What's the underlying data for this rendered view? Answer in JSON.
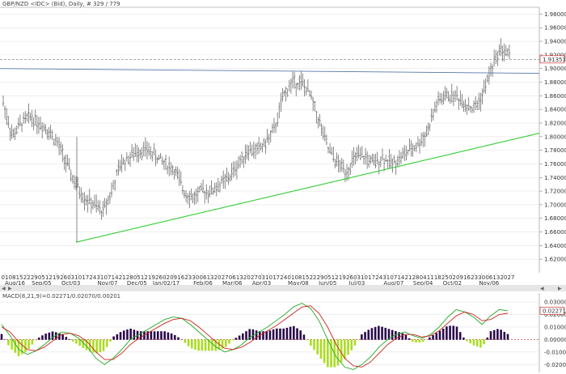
{
  "header": {
    "title": "GBP/NZD <IDC> (Bid), Daily, # 329 / 779"
  },
  "price_box": "1.91353",
  "macd": {
    "header": "MACD(8,21,9)=0.02271/0.02070/0.00201",
    "value_box": "0.02271",
    "yticks": [
      "0.03000",
      "0.02000",
      "0.01000",
      "0.00000",
      "-0.01000",
      "-0.02000"
    ]
  },
  "colors": {
    "candle": "#555555",
    "trend_up": "#33cc33",
    "resistance": "#5577aa",
    "dashed": "#777777",
    "macd_line": "#22aa22",
    "signal_line": "#cc2222",
    "hist_pos": "#2a0a4a",
    "hist_neg": "#aadd22"
  },
  "chart_data": {
    "type": "line",
    "title": "GBP/NZD <IDC> (Bid), Daily",
    "ylim": [
      1.6,
      1.99
    ],
    "yticks": [
      1.98,
      1.96,
      1.94,
      1.92,
      1.9,
      1.88,
      1.86,
      1.84,
      1.82,
      1.8,
      1.78,
      1.76,
      1.74,
      1.72,
      1.7,
      1.68,
      1.66,
      1.64,
      1.62
    ],
    "ytick_labels": [
      "1.98000",
      "1.96000",
      "1.94000",
      "1.92000",
      "1.90000",
      "1.88000",
      "1.86000",
      "1.84000",
      "1.82000",
      "1.80000",
      "1.78000",
      "1.76000",
      "1.74000",
      "1.72000",
      "1.70000",
      "1.68000",
      "1.66000",
      "1.64000",
      "1.62000"
    ],
    "day_labels": [
      "01",
      "08",
      "15",
      "22",
      "29",
      "05",
      "12",
      "19",
      "26",
      "03",
      "10",
      "17",
      "24",
      "31",
      "07",
      "14",
      "21",
      "28",
      "05",
      "12",
      "19",
      "26",
      "02",
      "09",
      "16",
      "23",
      "30",
      "06",
      "13",
      "20",
      "27",
      "06",
      "13",
      "20",
      "27",
      "03",
      "10",
      "17",
      "24",
      "01",
      "08",
      "15",
      "22",
      "29",
      "05",
      "12",
      "19",
      "26",
      "03",
      "10",
      "17",
      "24",
      "31",
      "07",
      "14",
      "21",
      "28",
      "04",
      "11",
      "18",
      "25",
      "02",
      "09",
      "16",
      "23",
      "30",
      "06",
      "13",
      "20",
      "27"
    ],
    "month_labels": [
      "Aug/16",
      "Sep/05",
      "Oct/03",
      "Nov/07",
      "Dec/05",
      "Jan/02/17",
      "Feb/06",
      "Mar/06",
      "Apr/03",
      "May/08",
      "Jun/05",
      "Jul/03",
      "Aug/07",
      "Sep/04",
      "Oct/02",
      "Nov/06"
    ],
    "month_label_index": [
      0,
      5,
      9,
      14,
      18,
      22,
      27,
      31,
      35,
      40,
      44,
      48,
      53,
      57,
      61,
      66
    ],
    "current_price": 1.91353,
    "price_path_weekly": [
      1.85,
      1.8,
      1.82,
      1.83,
      1.82,
      1.81,
      1.79,
      1.76,
      1.73,
      1.71,
      1.7,
      1.69,
      1.72,
      1.76,
      1.77,
      1.78,
      1.78,
      1.77,
      1.76,
      1.75,
      1.72,
      1.71,
      1.72,
      1.72,
      1.73,
      1.74,
      1.76,
      1.78,
      1.78,
      1.79,
      1.81,
      1.86,
      1.88,
      1.88,
      1.86,
      1.82,
      1.78,
      1.76,
      1.75,
      1.77,
      1.77,
      1.76,
      1.77,
      1.76,
      1.77,
      1.78,
      1.79,
      1.81,
      1.85,
      1.86,
      1.86,
      1.85,
      1.84,
      1.86,
      1.9,
      1.93,
      1.92
    ],
    "resistance_line": {
      "from": 1.9,
      "to": 1.893
    },
    "support_line": {
      "from": 1.645,
      "to": 1.805
    },
    "macd_series": [
      {
        "name": "MACD",
        "values": [
          0.012,
          0.003,
          -0.008,
          -0.012,
          -0.009,
          -0.004,
          0.002,
          0.006,
          0.005,
          0.001,
          -0.006,
          -0.015,
          -0.02,
          -0.015,
          -0.008,
          0.0,
          0.004,
          0.008,
          0.012,
          0.016,
          0.018,
          0.017,
          0.012,
          0.006,
          0.0,
          -0.006,
          -0.01,
          -0.008,
          -0.004,
          0.002,
          0.006,
          0.01,
          0.015,
          0.02,
          0.026,
          0.029,
          0.025,
          0.015,
          0.0,
          -0.014,
          -0.022,
          -0.024,
          -0.02,
          -0.014,
          -0.006,
          0.0,
          0.004,
          0.006,
          0.003,
          0.001,
          0.004,
          0.01,
          0.018,
          0.024,
          0.022,
          0.018,
          0.012,
          0.019,
          0.024,
          0.023
        ]
      },
      {
        "name": "Signal",
        "values": [
          0.01,
          0.006,
          -0.002,
          -0.008,
          -0.009,
          -0.006,
          -0.001,
          0.004,
          0.005,
          0.003,
          -0.002,
          -0.01,
          -0.016,
          -0.016,
          -0.011,
          -0.004,
          0.001,
          0.005,
          0.009,
          0.013,
          0.016,
          0.017,
          0.015,
          0.01,
          0.004,
          -0.002,
          -0.007,
          -0.008,
          -0.006,
          -0.002,
          0.003,
          0.007,
          0.011,
          0.016,
          0.021,
          0.026,
          0.027,
          0.021,
          0.01,
          -0.004,
          -0.015,
          -0.021,
          -0.022,
          -0.018,
          -0.011,
          -0.004,
          0.001,
          0.004,
          0.004,
          0.002,
          0.003,
          0.007,
          0.013,
          0.019,
          0.022,
          0.02,
          0.015,
          0.016,
          0.02,
          0.021
        ]
      }
    ]
  }
}
